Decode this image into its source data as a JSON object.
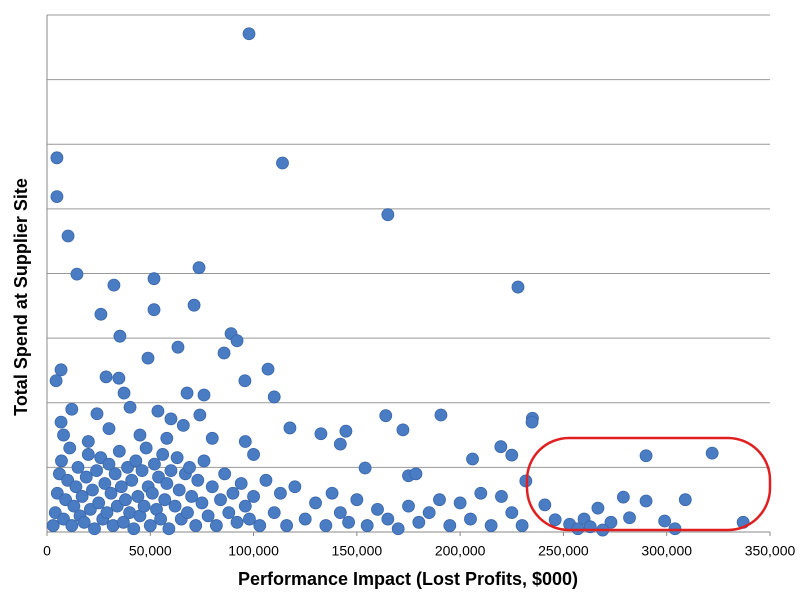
{
  "chart_data": {
    "type": "scatter",
    "x_label": "Performance Impact (Lost Profits, $000)",
    "y_label": "Total Spend at Supplier Site",
    "color": "#4a7cc4",
    "xlim": [
      0,
      350000
    ],
    "xticks": [
      0,
      {
        "value": 50000,
        "label": "50,000"
      },
      {
        "value": 100000,
        "label": "100,000"
      },
      {
        "value": 150000,
        "label": "150,000"
      },
      {
        "value": 200000,
        "label": "200,000"
      },
      {
        "value": 250000,
        "label": "250,000"
      },
      {
        "value": 300000,
        "label": "300,000"
      },
      {
        "value": 350000,
        "label": "350,000"
      }
    ],
    "ylim": [
      0,
      8
    ],
    "yticks": [
      0,
      1,
      2,
      3,
      4,
      5,
      6,
      7,
      8
    ],
    "ytick_labels": false,
    "grid": true,
    "x": [
      97800,
      114000,
      4800,
      4800,
      10200,
      14500,
      165000,
      228000,
      73600,
      32400,
      51800,
      51800,
      26100,
      71200,
      35300,
      63400,
      89100,
      92000,
      85700,
      48900,
      107000,
      6800,
      4400,
      28600,
      34800,
      95800,
      67800,
      76000,
      110000,
      37300,
      40200,
      53700,
      164000,
      190700,
      235000,
      234800,
      6800,
      24200,
      74000,
      117600,
      132600,
      144700,
      172300,
      219700,
      206000,
      225000,
      290000,
      322000,
      142000,
      154000,
      175000,
      178600,
      231800,
      279000,
      290000,
      309000,
      241000,
      266700,
      337000,
      299000,
      304000,
      282000,
      273000,
      260000,
      253000,
      263000,
      246000,
      257000,
      269000,
      8000,
      20000,
      30000,
      45000,
      60000,
      66000,
      80000,
      96000,
      100000,
      58000,
      12000,
      3000,
      4000,
      5000,
      6000,
      7000,
      8000,
      9000,
      10000,
      11000,
      12000,
      13000,
      14000,
      15000,
      16000,
      17000,
      18000,
      19000,
      20000,
      21000,
      22000,
      23000,
      24000,
      25000,
      26000,
      27000,
      28000,
      29000,
      30000,
      31000,
      32000,
      33000,
      34000,
      35000,
      36000,
      37000,
      38000,
      39000,
      40000,
      41000,
      42000,
      43000,
      44000,
      45000,
      46000,
      47000,
      48000,
      49000,
      50000,
      51000,
      52000,
      53000,
      54000,
      55000,
      56000,
      57000,
      58000,
      59000,
      60000,
      62000,
      63000,
      64000,
      65000,
      67000,
      68000,
      69000,
      70000,
      72000,
      73000,
      75000,
      76000,
      78000,
      80000,
      82000,
      84000,
      86000,
      88000,
      90000,
      92000,
      94000,
      96000,
      98000,
      100000,
      103000,
      106000,
      110000,
      113000,
      116000,
      120000,
      125000,
      130000,
      135000,
      138000,
      142000,
      146000,
      150000,
      155000,
      160000,
      165000,
      170000,
      175000,
      180000,
      185000,
      190000,
      195000,
      200000,
      205000,
      210000,
      215000,
      220000,
      225000,
      230000
    ],
    "values": [
      7.71,
      5.71,
      5.79,
      5.19,
      4.58,
      3.99,
      4.91,
      3.79,
      4.09,
      3.82,
      3.92,
      3.44,
      3.37,
      3.51,
      3.03,
      2.86,
      3.07,
      2.96,
      2.77,
      2.69,
      2.52,
      2.51,
      2.34,
      2.4,
      2.38,
      2.34,
      2.15,
      2.12,
      2.09,
      2.15,
      1.93,
      1.87,
      1.8,
      1.81,
      1.76,
      1.7,
      1.7,
      1.83,
      1.81,
      1.61,
      1.52,
      1.56,
      1.58,
      1.32,
      1.13,
      1.19,
      1.18,
      1.22,
      1.36,
      0.99,
      0.87,
      0.9,
      0.79,
      0.54,
      0.48,
      0.5,
      0.42,
      0.37,
      0.15,
      0.17,
      0.05,
      0.22,
      0.15,
      0.2,
      0.12,
      0.08,
      0.19,
      0.05,
      0.03,
      1.5,
      1.4,
      1.6,
      1.5,
      1.75,
      1.65,
      1.45,
      1.4,
      1.2,
      1.45,
      1.9,
      0.1,
      0.3,
      0.6,
      0.9,
      1.1,
      0.2,
      0.5,
      0.8,
      1.3,
      0.1,
      0.4,
      0.7,
      1.0,
      0.25,
      0.55,
      0.15,
      0.85,
      1.2,
      0.35,
      0.65,
      0.05,
      0.95,
      0.45,
      1.15,
      0.2,
      0.75,
      0.3,
      1.05,
      0.6,
      0.1,
      0.9,
      0.4,
      1.25,
      0.7,
      0.15,
      0.5,
      1.0,
      0.3,
      0.8,
      0.05,
      1.1,
      0.55,
      0.25,
      0.95,
      0.4,
      1.3,
      0.7,
      0.1,
      0.6,
      1.05,
      0.35,
      0.85,
      0.2,
      1.2,
      0.5,
      0.75,
      0.05,
      0.95,
      0.4,
      1.15,
      0.65,
      0.2,
      0.9,
      0.3,
      1.0,
      0.55,
      0.1,
      0.8,
      0.45,
      1.1,
      0.25,
      0.7,
      0.1,
      0.5,
      0.9,
      0.3,
      0.6,
      0.15,
      0.75,
      0.4,
      0.2,
      0.55,
      0.1,
      0.8,
      0.3,
      0.6,
      0.1,
      0.7,
      0.2,
      0.45,
      0.1,
      0.6,
      0.3,
      0.15,
      0.5,
      0.1,
      0.35,
      0.2,
      0.05,
      0.4,
      0.15,
      0.3,
      0.5,
      0.1,
      0.45,
      0.2,
      0.6,
      0.1,
      0.55,
      0.3,
      0.1
    ]
  }
}
